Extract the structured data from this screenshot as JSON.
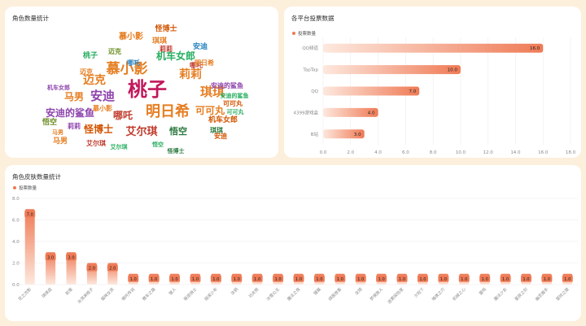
{
  "panels": {
    "wordcloud": {
      "title": "角色数量统计"
    },
    "platform": {
      "title": "各平台投票数据",
      "legend": "投票数量"
    },
    "skins": {
      "title": "角色皮肤数量统计",
      "legend": "投票数量"
    }
  },
  "colors": {
    "background": "#fcefdc",
    "card": "#ffffff",
    "bar_dark": "#ef7a55",
    "bar_light": "#fde8de",
    "label_box": "#ef7a55"
  },
  "wordcloud_words": [
    "桃子",
    "明日希",
    "慕小影",
    "琪琪",
    "安迪",
    "艾尔琪",
    "迈克",
    "莉莉",
    "可可丸",
    "哪吒",
    "机车女郎",
    "安迪的鲨鱼",
    "马男",
    "怪博士",
    "悟空"
  ],
  "chart_data": [
    {
      "type": "bar",
      "orientation": "horizontal",
      "title": "各平台投票数据",
      "legend": "投票数量",
      "categories": [
        "QQ频道",
        "TapTap",
        "QQ",
        "4399游戏盒",
        "B站"
      ],
      "values": [
        16.0,
        10.0,
        7.0,
        4.0,
        3.0
      ],
      "value_labels": [
        "16.0",
        "10.0",
        "7.0",
        "4.0",
        "3.0"
      ],
      "xlim": [
        0,
        18
      ],
      "x_ticks": [
        "0.0",
        "2.0",
        "4.0",
        "6.0",
        "8.0",
        "10.0",
        "12.0",
        "14.0",
        "16.0",
        "18.0"
      ],
      "grid": true
    },
    {
      "type": "bar",
      "orientation": "vertical",
      "title": "角色皮肤数量统计",
      "legend": "投票数量",
      "categories": [
        "花之流影",
        "琪琪皮",
        "前辈",
        "冰淇淋桃子",
        "猫咪女孩",
        "哪吒传说",
        "赛车之路",
        "猎人",
        "叛逆骑士",
        "摇滚少年",
        "涂鸦",
        "功夫熊",
        "冰雪公主",
        "魔法之夜",
        "狸猫",
        "绿茵侠客",
        "龙骑",
        "梦境旅人",
        "迷雾探险家",
        "夕阳下",
        "暗夜之刃",
        "机械之心",
        "雷鸣",
        "魔法少女",
        "星辰之剑",
        "幽灵猎手",
        "冒险之旅"
      ],
      "values": [
        7.0,
        3.0,
        3.0,
        2.0,
        2.0,
        1.0,
        1.0,
        1.0,
        1.0,
        1.0,
        1.0,
        1.0,
        1.0,
        1.0,
        1.0,
        1.0,
        1.0,
        1.0,
        1.0,
        1.0,
        1.0,
        1.0,
        1.0,
        1.0,
        1.0,
        1.0,
        1.0
      ],
      "value_labels": [
        "7.0",
        "3.0",
        "3.0",
        "2.0",
        "2.0",
        "1.0",
        "1.0",
        "1.0",
        "1.0",
        "1.0",
        "1.0",
        "1.0",
        "1.0",
        "1.0",
        "1.0",
        "1.0",
        "1.0",
        "1.0",
        "1.0",
        "1.0",
        "1.0",
        "1.0",
        "1.0",
        "1.0",
        "1.0",
        "1.0",
        "1.0"
      ],
      "ylim": [
        0,
        8
      ],
      "y_ticks": [
        "0.0",
        "2.0",
        "4.0",
        "6.0",
        "8.0"
      ],
      "grid": true
    }
  ]
}
